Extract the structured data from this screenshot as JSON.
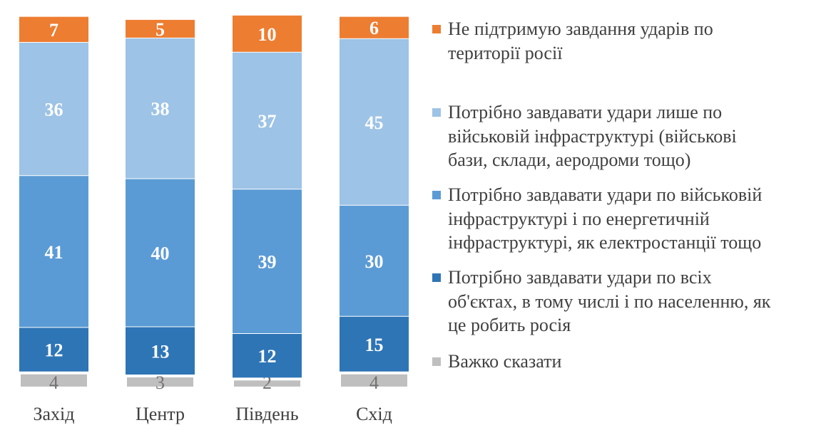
{
  "chart_data": {
    "type": "bar",
    "stacked": true,
    "categories": [
      "Захід",
      "Центр",
      "Південь",
      "Схід"
    ],
    "series": [
      {
        "name": "Важко сказати",
        "color": "#BFBFBF",
        "values": [
          4,
          3,
          2,
          4
        ]
      },
      {
        "name": "Потрібно завдавати удари по всіх об'єктах, в тому числі і по населенню, як це робить росія",
        "color": "#2E75B6",
        "values": [
          12,
          13,
          12,
          15
        ]
      },
      {
        "name": "Потрібно завдавати удари по військовій інфраструктурі і по енергетичній інфраструктурі, як електростанції тощо",
        "color": "#5B9BD5",
        "values": [
          41,
          40,
          39,
          30
        ]
      },
      {
        "name": "Потрібно завдавати удари  лише по військовій інфраструктурі (військові бази, склади, аеродроми тощо)",
        "color": "#9DC3E6",
        "values": [
          36,
          38,
          37,
          45
        ]
      },
      {
        "name": "Не підтримую завдання ударів по території росії",
        "color": "#ED7D31",
        "values": [
          7,
          5,
          10,
          6
        ]
      }
    ],
    "data_labels": true,
    "grid": false,
    "legend_position": "right",
    "legend_display": [
      "Не підтримую завдання ударів по\nтериторії росії",
      "Потрібно завдавати удари  лише по\nвійськовій інфраструктурі (військові\nбази, склади, аеродроми тощо)",
      "Потрібно завдавати удари по військовій\nінфраструктурі і по енергетичній\nінфраструктурі, як електростанції тощо",
      "Потрібно завдавати удари по всіх\nоб'єктах, в тому числі і по населенню, як\nце робить росія",
      "Важко сказати"
    ]
  }
}
